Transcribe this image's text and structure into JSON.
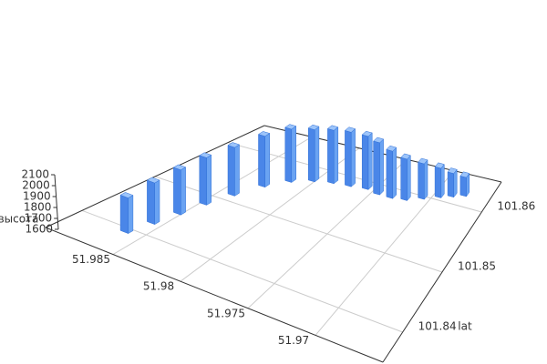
{
  "chart_data": {
    "type": "bar3d",
    "z_label": "высота",
    "y_label": "lat",
    "x": [
      51.98625,
      51.98575,
      51.98525,
      51.98475,
      51.984,
      51.983,
      51.98175,
      51.98025,
      51.97875,
      51.97725,
      51.97575,
      51.9745,
      51.97325,
      51.972,
      51.97075,
      51.9695,
      51.9685,
      51.9675
    ],
    "y": [
      101.8395,
      101.8425,
      101.8455,
      101.8485,
      101.8515,
      101.8545,
      101.8566,
      101.8578,
      101.8584,
      101.8587,
      101.859,
      101.8587,
      101.8587,
      101.859,
      101.8599,
      101.8608,
      101.8614,
      101.862
    ],
    "z": [
      1900,
      1950,
      1980,
      2000,
      2010,
      2030,
      2050,
      2040,
      2050,
      2060,
      2050,
      2040,
      2000,
      1950,
      1900,
      1850,
      1800,
      1760
    ],
    "color": "#4a86e8",
    "xlim": [
      51.965,
      51.99
    ],
    "ylim": [
      101.835,
      101.865
    ],
    "zlim": [
      1600,
      2100
    ],
    "xticks": [
      51.97,
      51.975,
      51.98,
      51.985
    ],
    "yticks": [
      101.84,
      101.85,
      101.86
    ],
    "zticks": [
      1600,
      1700,
      1800,
      1900,
      2000,
      2100
    ],
    "grid": true
  }
}
